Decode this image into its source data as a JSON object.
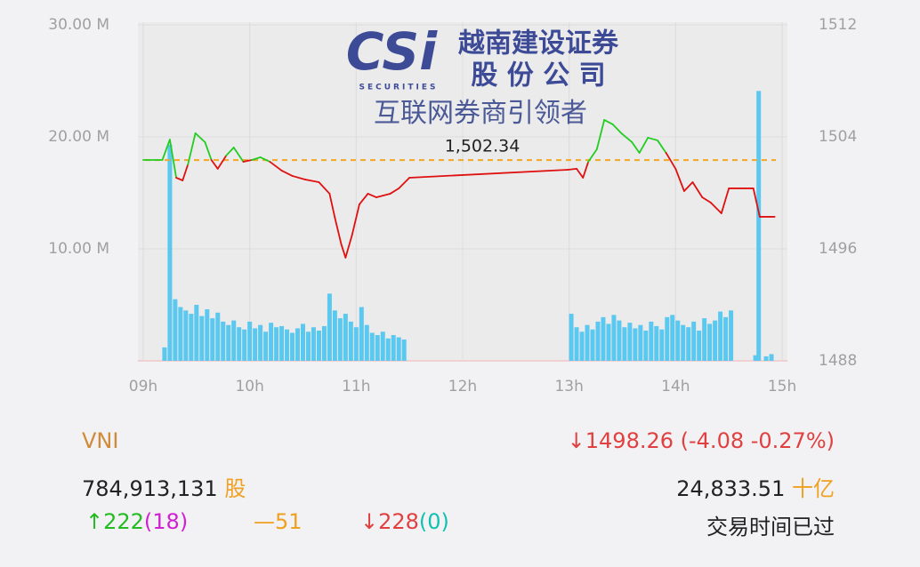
{
  "chart_data": {
    "type": "intraday",
    "xlim": [
      8.95,
      15.05
    ],
    "xticks": [
      {
        "value": 9,
        "label": "09h"
      },
      {
        "value": 10,
        "label": "10h"
      },
      {
        "value": 11,
        "label": "11h"
      },
      {
        "value": 12,
        "label": "12h"
      },
      {
        "value": 13,
        "label": "13h"
      },
      {
        "value": 14,
        "label": "14h"
      },
      {
        "value": 15,
        "label": "15h"
      }
    ],
    "ylim": [
      0,
      30000000
    ],
    "yticks": [
      {
        "value": 10000000,
        "label": "10.00 M"
      },
      {
        "value": 20000000,
        "label": "20.00 M"
      },
      {
        "value": 30000000,
        "label": "30.00 M"
      }
    ],
    "y2lim": [
      1488,
      1512
    ],
    "y2ticks": [
      1488,
      1496,
      1504,
      1512
    ],
    "grid": true,
    "reference": {
      "value": 1502.34,
      "label": "1,502.34",
      "color": "#f5a623"
    },
    "series": [
      {
        "name": "VNI",
        "axis": "y2",
        "color_up": "#22cc22",
        "color_down": "#e01010",
        "x": [
          9.0,
          9.18,
          9.25,
          9.31,
          9.37,
          9.42,
          9.49,
          9.58,
          9.64,
          9.7,
          9.78,
          9.85,
          9.94,
          10.02,
          10.1,
          10.19,
          10.3,
          10.4,
          10.52,
          10.65,
          10.75,
          10.8,
          10.86,
          10.9,
          10.96,
          11.03,
          11.11,
          11.19,
          11.32,
          11.4,
          11.5,
          12.99,
          13.07,
          13.13,
          13.18,
          13.26,
          13.33,
          13.41,
          13.49,
          13.59,
          13.66,
          13.74,
          13.83,
          13.91,
          14.0,
          14.08,
          14.16,
          14.25,
          14.33,
          14.43,
          14.5,
          14.73,
          14.79,
          14.93
        ],
        "values": [
          1502.35,
          1502.35,
          1503.81,
          1501.08,
          1500.89,
          1502.03,
          1504.26,
          1503.62,
          1502.35,
          1501.72,
          1502.67,
          1503.24,
          1502.22,
          1502.35,
          1502.54,
          1502.22,
          1501.59,
          1501.21,
          1500.95,
          1500.76,
          1499.94,
          1498.22,
          1496.32,
          1495.37,
          1496.95,
          1499.18,
          1499.94,
          1499.68,
          1499.94,
          1500.32,
          1501.08,
          1501.65,
          1501.72,
          1501.08,
          1502.22,
          1503.11,
          1505.21,
          1504.89,
          1504.26,
          1503.62,
          1502.86,
          1503.94,
          1503.75,
          1502.86,
          1501.72,
          1500.13,
          1500.76,
          1499.68,
          1499.3,
          1498.54,
          1500.32,
          1500.32,
          1498.29,
          1498.29
        ]
      },
      {
        "name": "volume",
        "color": "#5bc8f0",
        "x": [
          9.2,
          9.25,
          9.3,
          9.35,
          9.4,
          9.45,
          9.5,
          9.55,
          9.6,
          9.65,
          9.7,
          9.75,
          9.8,
          9.85,
          9.9,
          9.95,
          10.0,
          10.05,
          10.1,
          10.15,
          10.2,
          10.25,
          10.3,
          10.35,
          10.4,
          10.45,
          10.5,
          10.55,
          10.6,
          10.65,
          10.7,
          10.75,
          10.8,
          10.85,
          10.9,
          10.95,
          11.0,
          11.05,
          11.1,
          11.15,
          11.2,
          11.25,
          11.3,
          11.35,
          11.4,
          11.45,
          13.02,
          13.07,
          13.12,
          13.17,
          13.22,
          13.27,
          13.32,
          13.37,
          13.42,
          13.47,
          13.52,
          13.57,
          13.62,
          13.67,
          13.72,
          13.77,
          13.82,
          13.87,
          13.92,
          13.97,
          14.02,
          14.07,
          14.12,
          14.17,
          14.22,
          14.27,
          14.32,
          14.37,
          14.42,
          14.47,
          14.52,
          14.75,
          14.78,
          14.85,
          14.9
        ],
        "values": [
          1200000,
          19300000,
          5500000,
          4800000,
          4500000,
          4200000,
          5000000,
          4000000,
          4600000,
          3800000,
          4300000,
          3500000,
          3200000,
          3600000,
          3000000,
          2800000,
          3500000,
          2900000,
          3200000,
          2600000,
          3400000,
          3000000,
          3100000,
          2800000,
          2500000,
          2900000,
          3300000,
          2600000,
          3000000,
          2700000,
          3100000,
          6000000,
          4500000,
          3800000,
          4200000,
          3500000,
          3000000,
          4800000,
          3200000,
          2500000,
          2300000,
          2600000,
          2000000,
          2300000,
          2100000,
          1900000,
          4200000,
          3000000,
          2600000,
          3200000,
          2800000,
          3500000,
          3900000,
          3300000,
          4100000,
          3600000,
          3000000,
          3400000,
          2900000,
          3200000,
          2700000,
          3500000,
          3100000,
          2800000,
          3900000,
          4100000,
          3600000,
          3200000,
          3000000,
          3500000,
          2700000,
          3800000,
          3300000,
          3600000,
          4400000,
          3900000,
          4500000,
          500000,
          24100000,
          400000,
          600000
        ]
      }
    ]
  },
  "watermark": {
    "logo": "CSi",
    "logo_sub": "SECURITIES",
    "name_line1": "越南建设证券",
    "name_line2": "股 份 公 司",
    "slogan": "互联网券商引领者"
  },
  "summary": {
    "index": "VNI",
    "change": "1498.26 (-4.08 -0.27%)",
    "volume": "784,913,131",
    "volume_unit": "股",
    "value": "24,833.51",
    "value_unit": "十亿",
    "advances": "222",
    "advances_ceiling": "(18)",
    "unchanged": "51",
    "declines": "228",
    "declines_floor": "(0)",
    "status": "交易时间已过"
  }
}
